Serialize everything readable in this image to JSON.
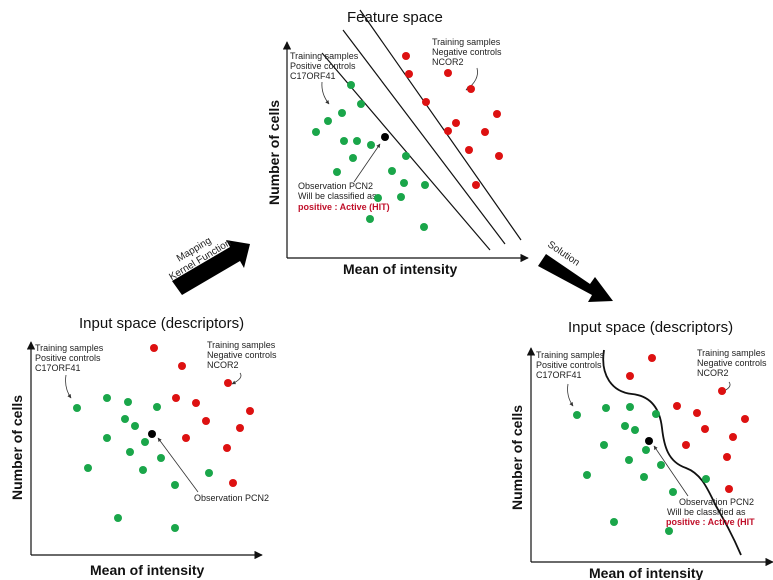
{
  "colors": {
    "positive": "#1aa64a",
    "negative": "#dd1111",
    "observation": "#000000",
    "arrow": "#000000"
  },
  "feature_space": {
    "title": "Feature space",
    "ylabel": "Number of cells",
    "xlabel": "Mean of intensity",
    "positive_label": [
      "Training samples",
      "Positive controls",
      "C17ORF41"
    ],
    "negative_label": [
      "Training samples",
      "Negative controls",
      "NCOR2"
    ],
    "observation_label": [
      "Observation PCN2",
      "Will be classified as"
    ],
    "hit_label": "positive : Active (HIT)"
  },
  "input_space_left": {
    "title": "Input space (descriptors)",
    "ylabel": "Number of cells",
    "xlabel": "Mean of intensity",
    "positive_label": [
      "Training samples",
      "Positive controls",
      "C17ORF41"
    ],
    "negative_label": [
      "Training samples",
      "Negative controls",
      "NCOR2"
    ],
    "observation_label": "Observation PCN2"
  },
  "input_space_right": {
    "title": "Input space (descriptors)",
    "ylabel": "Number of cells",
    "xlabel": "Mean of intensity",
    "positive_label": [
      "Training samples",
      "Positive controls",
      "C17ORF41"
    ],
    "negative_label": [
      "Training samples",
      "Negative controls",
      "NCOR2"
    ],
    "observation_label": [
      "Observation PCN2",
      "Will be classified as"
    ],
    "hit_label": "positive : Active (HIT"
  },
  "arrows": {
    "mapping": [
      "Mapping",
      "Kernel Function"
    ],
    "solution": "Solution"
  }
}
